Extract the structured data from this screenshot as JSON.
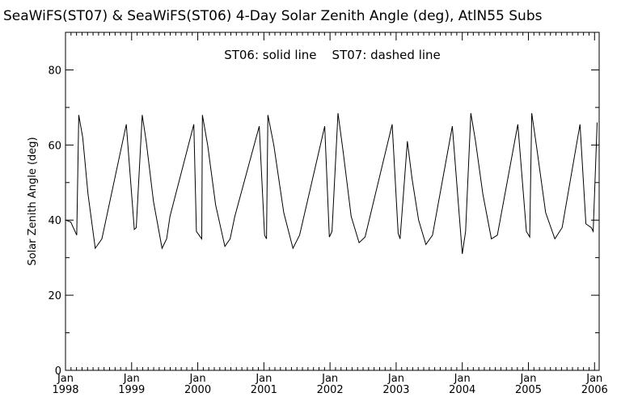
{
  "chart_data": {
    "type": "line",
    "title": "SeaWiFS(ST07) & SeaWiFS(ST06) 4-Day Solar Zenith Angle (deg), AtlN55 Subs",
    "annotation": "ST06: solid line    ST07: dashed line",
    "xlabel": "",
    "ylabel": "Solar Zenith Angle (deg)",
    "xlim": [
      1998.0,
      2006.07
    ],
    "ylim": [
      0,
      90
    ],
    "y_ticks": [
      0,
      20,
      40,
      60,
      80
    ],
    "x_ticks": [
      {
        "month": "Jan",
        "year": "1998",
        "x": 1998.0
      },
      {
        "month": "Jan",
        "year": "1999",
        "x": 1999.0
      },
      {
        "month": "Jan",
        "year": "2000",
        "x": 2000.0
      },
      {
        "month": "Jan",
        "year": "2001",
        "x": 2001.0
      },
      {
        "month": "Jan",
        "year": "2002",
        "x": 2002.0
      },
      {
        "month": "Jan",
        "year": "2003",
        "x": 2003.0
      },
      {
        "month": "Jan",
        "year": "2004",
        "x": 2004.0
      },
      {
        "month": "Jan",
        "year": "2005",
        "x": 2005.0
      },
      {
        "month": "Jan",
        "year": "2006",
        "x": 2006.0
      }
    ],
    "x_minor_per_year": 12,
    "grid": false,
    "series": [
      {
        "name": "ST06",
        "style": "solid",
        "color": "#000000",
        "points": [
          [
            1998.0,
            40
          ],
          [
            1998.08,
            39.5
          ],
          [
            1998.17,
            36
          ],
          [
            1998.2,
            68
          ],
          [
            1998.26,
            62
          ],
          [
            1998.34,
            47
          ],
          [
            1998.45,
            32.5
          ],
          [
            1998.55,
            35
          ],
          [
            1998.92,
            65.5
          ],
          [
            1999.04,
            37.5
          ],
          [
            1999.07,
            38
          ],
          [
            1999.16,
            68
          ],
          [
            1999.22,
            61
          ],
          [
            1999.33,
            45
          ],
          [
            1999.46,
            32.5
          ],
          [
            1999.53,
            35
          ],
          [
            1999.58,
            41
          ],
          [
            1999.94,
            65.5
          ],
          [
            1999.98,
            37
          ],
          [
            2000.06,
            35
          ],
          [
            2000.07,
            68
          ],
          [
            2000.15,
            60
          ],
          [
            2000.27,
            44
          ],
          [
            2000.41,
            33
          ],
          [
            2000.49,
            35
          ],
          [
            2000.56,
            41
          ],
          [
            2000.93,
            65
          ],
          [
            2001.01,
            36
          ],
          [
            2001.04,
            35
          ],
          [
            2001.06,
            68
          ],
          [
            2001.15,
            60
          ],
          [
            2001.3,
            42
          ],
          [
            2001.44,
            32.5
          ],
          [
            2001.54,
            36
          ],
          [
            2001.92,
            65
          ],
          [
            2001.99,
            35.5
          ],
          [
            2002.03,
            37
          ],
          [
            2002.12,
            68.5
          ],
          [
            2002.2,
            58
          ],
          [
            2002.32,
            41
          ],
          [
            2002.44,
            34
          ],
          [
            2002.53,
            35.5
          ],
          [
            2002.94,
            65.5
          ],
          [
            2003.03,
            36.5
          ],
          [
            2003.06,
            35
          ],
          [
            2003.17,
            61
          ],
          [
            2003.24,
            51
          ],
          [
            2003.34,
            40
          ],
          [
            2003.45,
            33.5
          ],
          [
            2003.55,
            36
          ],
          [
            2003.85,
            65
          ],
          [
            2004.0,
            31
          ],
          [
            2004.05,
            37
          ],
          [
            2004.13,
            68.5
          ],
          [
            2004.2,
            61
          ],
          [
            2004.31,
            47
          ],
          [
            2004.44,
            35
          ],
          [
            2004.53,
            36
          ],
          [
            2004.84,
            65.5
          ],
          [
            2004.97,
            37
          ],
          [
            2005.02,
            35.5
          ],
          [
            2005.05,
            68.5
          ],
          [
            2005.12,
            60
          ],
          [
            2005.26,
            42
          ],
          [
            2005.4,
            35
          ],
          [
            2005.51,
            38
          ],
          [
            2005.78,
            65.5
          ],
          [
            2005.87,
            39
          ],
          [
            2005.95,
            38
          ],
          [
            2005.98,
            37
          ],
          [
            2006.04,
            66
          ]
        ]
      }
    ]
  }
}
